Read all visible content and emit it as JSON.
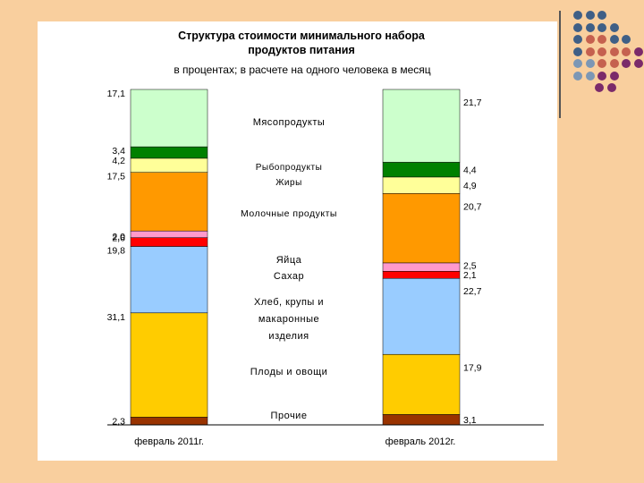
{
  "chart_data": {
    "type": "bar",
    "stacked": true,
    "title_line1": "Структура стоимости минимального набора",
    "title_line2": "продуктов питания",
    "subtitle": "в процентах;  в расчете  на одного  человека в месяц",
    "categories": [
      "февраль 2011г.",
      "февраль 2012г."
    ],
    "series": [
      {
        "name": "Прочие",
        "color": "#993300",
        "values": [
          2.3,
          3.1
        ],
        "labels": [
          "2,3",
          "3,1"
        ]
      },
      {
        "name": "Плоды и овощи",
        "color": "#ffcc00",
        "values": [
          31.1,
          17.9
        ],
        "labels": [
          "31,1",
          "17,9"
        ]
      },
      {
        "name": "Хлеб, крупы и макаронные изделия",
        "color": "#99ccff",
        "values": [
          19.8,
          22.7
        ],
        "labels": [
          "19,8",
          "22,7"
        ]
      },
      {
        "name": "Сахар",
        "color": "#ff0000",
        "values": [
          2.6,
          2.1
        ],
        "labels": [
          "2,6",
          "2,1"
        ]
      },
      {
        "name": "Яйца",
        "color": "#ff99cc",
        "values": [
          2.0,
          2.5
        ],
        "labels": [
          "2,0",
          "2,5"
        ]
      },
      {
        "name": "Молочные продукты",
        "color": "#ff9900",
        "values": [
          17.5,
          20.7
        ],
        "labels": [
          "17,5",
          "20,7"
        ]
      },
      {
        "name": "Жиры",
        "color": "#ffff99",
        "values": [
          4.2,
          4.9
        ],
        "labels": [
          "4,2",
          "4,9"
        ]
      },
      {
        "name": "Рыбопродукты",
        "color": "#008000",
        "values": [
          3.4,
          4.4
        ],
        "labels": [
          "3,4",
          "4,4"
        ]
      },
      {
        "name": "Мясопродукты",
        "color": "#ccffcc",
        "values": [
          17.1,
          21.7
        ],
        "labels": [
          "17,1",
          "21,7"
        ]
      }
    ],
    "center_labels": [
      {
        "lines": [
          "Мясопродукты"
        ]
      },
      {
        "lines": [
          "Рыбопродукты",
          "Жиры"
        ]
      },
      {
        "lines": [
          "Молочные продукты"
        ]
      },
      {
        "lines": [
          "Яйца",
          "Сахар"
        ]
      },
      {
        "lines": [
          "Хлеб, крупы и",
          "макаронные",
          "изделия"
        ]
      },
      {
        "lines": [
          "Плоды и овощи"
        ]
      },
      {
        "lines": [
          "Прочие"
        ]
      }
    ],
    "ylim": [
      0,
      100
    ],
    "xlabel": "",
    "ylabel": ""
  },
  "decor": {
    "dot_colors": {
      "blue": "#3f5f86",
      "red": "#c5614f",
      "gray": "#7c97b5",
      "purple": "#7b2a6a"
    }
  }
}
